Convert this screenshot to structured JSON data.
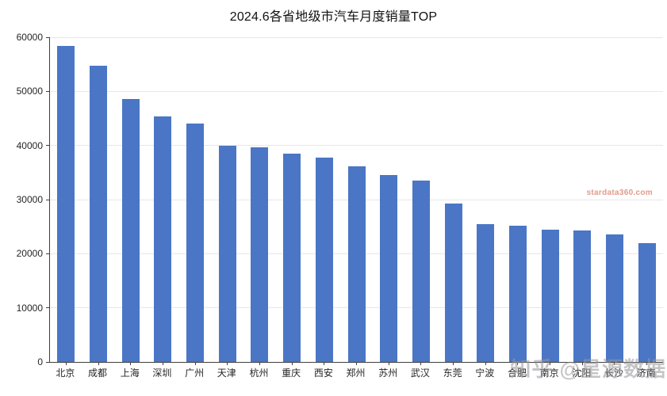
{
  "title": "2024.6各省地级市汽车月度销量TOP",
  "watermarks": {
    "site": "stardata360.com",
    "zhihu": "知乎 @星源数据"
  },
  "colors": {
    "bar": "#4a76c5",
    "grid": "#e7e7e7",
    "axis": "#3f3f3f",
    "watermark_site": "#e29a8b",
    "watermark_zhihu": "#97979c"
  },
  "chart_data": {
    "type": "bar",
    "title": "2024.6各省地级市汽车月度销量TOP",
    "categories": [
      "北京",
      "成都",
      "上海",
      "深圳",
      "广州",
      "天津",
      "杭州",
      "重庆",
      "西安",
      "郑州",
      "苏州",
      "武汉",
      "东莞",
      "宁波",
      "合肥",
      "南京",
      "沈阳",
      "长沙",
      "济南"
    ],
    "values": [
      58400,
      54700,
      48600,
      45400,
      44000,
      39900,
      39600,
      38500,
      37700,
      36100,
      34500,
      33500,
      29200,
      25500,
      25100,
      24500,
      24300,
      23600,
      21900
    ],
    "xlabel": "",
    "ylabel": "",
    "ylim": [
      0,
      60000
    ],
    "yticks": [
      0,
      10000,
      20000,
      30000,
      40000,
      50000,
      60000
    ],
    "ytick_labels": [
      "0",
      "10000",
      "20000",
      "30000",
      "40000",
      "50000",
      "60000"
    ],
    "grid": "horizontal",
    "legend": "none",
    "bar_color": "#4a76c5"
  }
}
